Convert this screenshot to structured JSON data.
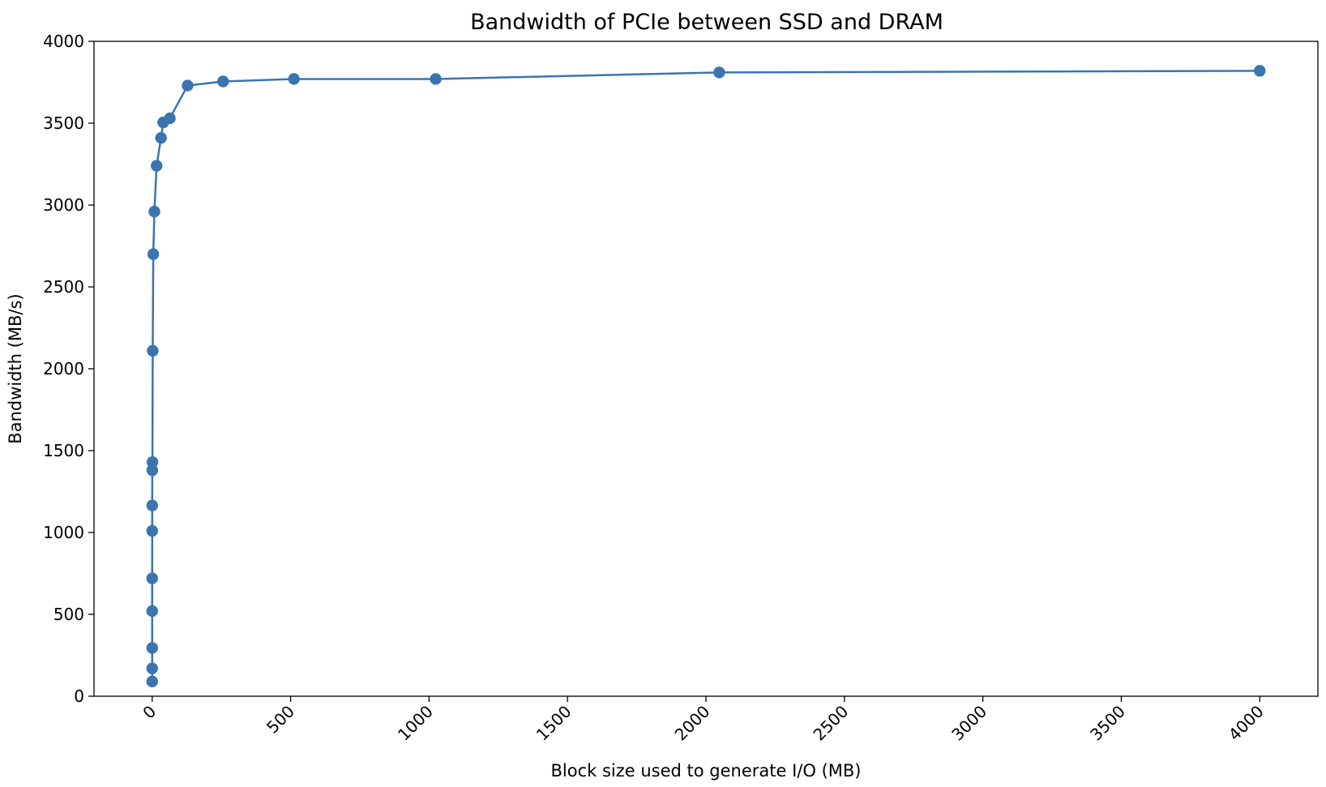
{
  "chart_data": {
    "type": "line",
    "title": "Bandwidth of PCIe between SSD and DRAM",
    "xlabel": "Block size used to generate I/O (MB)",
    "ylabel": "Bandwidth (MB/s)",
    "xlim": [
      -210,
      4210
    ],
    "ylim": [
      0,
      4000
    ],
    "xticks": [
      0,
      500,
      1000,
      1500,
      2000,
      2500,
      3000,
      3500,
      4000
    ],
    "yticks": [
      0,
      500,
      1000,
      1500,
      2000,
      2500,
      3000,
      3500,
      4000
    ],
    "xtick_rotation": 45,
    "grid": false,
    "series": [
      {
        "color": "#3a75b0",
        "marker": "circle",
        "points": [
          {
            "x": 0.0039,
            "y": 90
          },
          {
            "x": 0.0078,
            "y": 170
          },
          {
            "x": 0.0156,
            "y": 295
          },
          {
            "x": 0.0313,
            "y": 520
          },
          {
            "x": 0.0625,
            "y": 720
          },
          {
            "x": 0.125,
            "y": 1010
          },
          {
            "x": 0.25,
            "y": 1165
          },
          {
            "x": 0.5,
            "y": 1380
          },
          {
            "x": 1,
            "y": 1430
          },
          {
            "x": 2,
            "y": 2110
          },
          {
            "x": 4,
            "y": 2700
          },
          {
            "x": 8,
            "y": 2960
          },
          {
            "x": 16,
            "y": 3240
          },
          {
            "x": 32,
            "y": 3410
          },
          {
            "x": 40,
            "y": 3505
          },
          {
            "x": 64,
            "y": 3530
          },
          {
            "x": 128,
            "y": 3730
          },
          {
            "x": 256,
            "y": 3755
          },
          {
            "x": 512,
            "y": 3770
          },
          {
            "x": 1024,
            "y": 3770
          },
          {
            "x": 2048,
            "y": 3810
          },
          {
            "x": 4000,
            "y": 3820
          }
        ]
      }
    ]
  }
}
